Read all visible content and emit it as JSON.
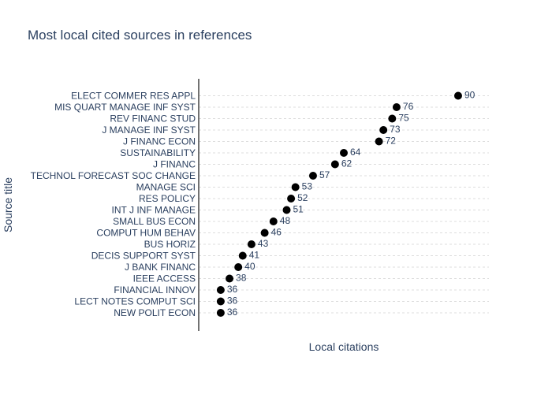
{
  "chart_data": {
    "type": "scatter",
    "title": "Most local cited sources in references",
    "xlabel": "Local citations",
    "ylabel": "Source title",
    "xlim": [
      31,
      97
    ],
    "grid": true,
    "categories": [
      "ELECT COMMER RES APPL",
      "MIS QUART MANAGE INF SYST",
      "REV FINANC STUD",
      "J MANAGE INF SYST",
      "J FINANC ECON",
      "SUSTAINABILITY",
      "J FINANC",
      "TECHNOL FORECAST SOC CHANGE",
      "MANAGE SCI",
      "RES POLICY",
      "INT J INF MANAGE",
      "SMALL BUS ECON",
      "COMPUT HUM BEHAV",
      "BUS HORIZ",
      "DECIS SUPPORT SYST",
      "J BANK FINANC",
      "IEEE ACCESS",
      "FINANCIAL INNOV",
      "LECT NOTES COMPUT SCI",
      "NEW POLIT ECON"
    ],
    "values": [
      90,
      76,
      75,
      73,
      72,
      64,
      62,
      57,
      53,
      52,
      51,
      48,
      46,
      43,
      41,
      40,
      38,
      36,
      36,
      36
    ],
    "marker_color": "#000000"
  }
}
